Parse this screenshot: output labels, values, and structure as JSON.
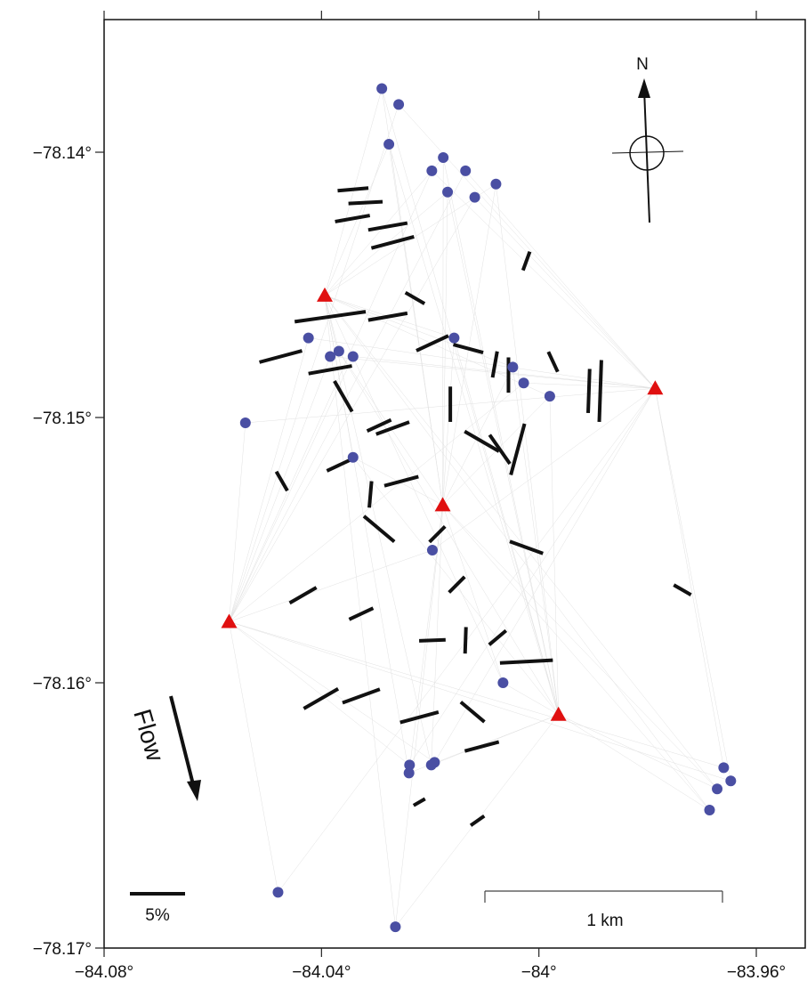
{
  "chart_data": {
    "type": "scatter",
    "xlim": [
      -84.08,
      -83.951
    ],
    "ylim": [
      -78.17,
      -78.135
    ],
    "xticks": [
      {
        "value": -84.08,
        "label": "−84.08°"
      },
      {
        "value": -84.04,
        "label": "−84.04°"
      },
      {
        "value": -84,
        "label": "−84°"
      },
      {
        "value": -83.96,
        "label": "−83.96°"
      }
    ],
    "yticks": [
      {
        "value": -78.14,
        "label": "−78.14°"
      },
      {
        "value": -78.15,
        "label": "−78.15°"
      },
      {
        "value": -78.16,
        "label": "−78.16°"
      },
      {
        "value": -78.17,
        "label": "−78.17°"
      }
    ],
    "series": [
      {
        "marker": "circle",
        "color": "#4a4fa3",
        "x": [
          -84.0289,
          -84.0258,
          -84.0276,
          -84.0197,
          -84.0176,
          -84.0135,
          -84.0168,
          -84.0118,
          -84.0079,
          -84.0424,
          -84.0156,
          -84.0384,
          -84.0368,
          -84.0342,
          -84.0048,
          -84.0028,
          -83.998,
          -84.054,
          -84.0342,
          -84.0196,
          -84.0066,
          -84.0238,
          -84.0239,
          -84.0192,
          -84.0198,
          -83.966,
          -83.9672,
          -83.9647,
          -83.9686,
          -84.048,
          -84.0264
        ],
        "values": [
          -78.1376,
          -78.1382,
          -78.1397,
          -78.1407,
          -78.1402,
          -78.1407,
          -78.1415,
          -78.1417,
          -78.1412,
          -78.147,
          -78.147,
          -78.1477,
          -78.1475,
          -78.1477,
          -78.1481,
          -78.1487,
          -78.1492,
          -78.1502,
          -78.1515,
          -78.155,
          -78.16,
          -78.1631,
          -78.1634,
          -78.163,
          -78.1631,
          -78.1632,
          -78.164,
          -78.1637,
          -78.1648,
          -78.1679,
          -78.1692
        ]
      },
      {
        "marker": "triangle",
        "color": "#e01010",
        "x": [
          -84.0394,
          -83.9786,
          -84.0177,
          -84.057,
          -83.9964
        ],
        "values": [
          -78.1454,
          -78.1489,
          -78.1533,
          -78.1577,
          -78.1612
        ]
      },
      {
        "marker": "segment",
        "color": "#111111",
        "x": [
          -84.0342,
          -84.0319,
          -84.0343,
          -84.0278,
          -84.0269,
          -84.0023,
          -84.0228,
          -84.0384,
          -84.0278,
          -84.0196,
          -84.0475,
          -84.0384,
          -84.013,
          -84.0081,
          -84.0056,
          -83.9974,
          -83.9908,
          -83.9887,
          -84.036,
          -84.0163,
          -84.0269,
          -84.0294,
          -84.0105,
          -84.0039,
          -84.0072,
          -84.0368,
          -84.0253,
          -84.0473,
          -84.031,
          -84.0294,
          -84.0187,
          -84.0023,
          -84.0434,
          -84.0327,
          -84.0151,
          -84.0196,
          -84.0135,
          -84.0076,
          -84.0023,
          -84.0401,
          -84.0327,
          -84.022,
          -84.0122,
          -84.0105,
          -83.9736,
          -84.022,
          -84.0113
        ],
        "values": [
          -78.1414,
          -78.1419,
          -78.1425,
          -78.1428,
          -78.1434,
          -78.1441,
          -78.1455,
          -78.1462,
          -78.1462,
          -78.1472,
          -78.1477,
          -78.1482,
          -78.1474,
          -78.148,
          -78.1484,
          -78.1479,
          -78.149,
          -78.149,
          -78.1492,
          -78.1495,
          -78.1504,
          -78.1503,
          -78.1509,
          -78.1512,
          -78.1512,
          -78.1518,
          -78.1524,
          -78.1524,
          -78.1529,
          -78.1542,
          -78.1544,
          -78.1549,
          -78.1567,
          -78.1574,
          -78.1563,
          -78.1584,
          -78.1584,
          -78.1583,
          -78.1592,
          -78.1606,
          -78.1605,
          -78.1613,
          -78.1611,
          -78.1624,
          -78.1565,
          -78.1645,
          -78.1652
        ],
        "lengths": [
          2.8,
          3.1,
          3.2,
          3.6,
          4.0,
          1.8,
          2.0,
          6.5,
          3.6,
          3.2,
          4.0,
          4.0,
          2.8,
          2.4,
          3.2,
          2.0,
          4.0,
          5.6,
          3.2,
          3.2,
          3.2,
          2.4,
          3.6,
          4.8,
          3.2,
          2.4,
          3.2,
          2.0,
          2.4,
          3.6,
          2.0,
          3.2,
          2.8,
          2.4,
          2.0,
          2.4,
          2.4,
          2.0,
          4.8,
          3.6,
          3.6,
          3.6,
          2.8,
          3.2,
          1.8,
          1.2,
          1.5
        ],
        "angles": [
          5,
          3,
          10,
          10,
          15,
          70,
          -30,
          8,
          10,
          25,
          15,
          10,
          -15,
          80,
          90,
          -65,
          88,
          88,
          -60,
          90,
          20,
          25,
          -30,
          75,
          -55,
          25,
          15,
          -60,
          85,
          -40,
          45,
          -20,
          30,
          25,
          45,
          2,
          88,
          40,
          3,
          30,
          20,
          15,
          -40,
          15,
          -30,
          30,
          35
        ]
      }
    ],
    "scale_bar": {
      "value": 5,
      "label": "5%"
    },
    "distance_label": "1 km",
    "north_label": "N",
    "flow_label": "Flow"
  }
}
